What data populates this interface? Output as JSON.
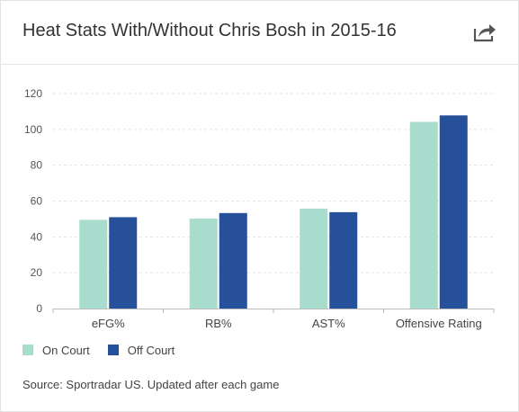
{
  "title": "Heat Stats With/Without Chris Bosh in 2015-16",
  "share_icon": "share-arrow-icon",
  "source": "Source: Sportradar US. Updated after each game",
  "colors": {
    "on_court": "#a8dccc",
    "off_court": "#27509b",
    "grid": "#e3e3e3"
  },
  "chart_data": {
    "type": "bar",
    "title": "Heat Stats With/Without Chris Bosh in 2015-16",
    "xlabel": "",
    "ylabel": "",
    "categories": [
      "eFG%",
      "RB%",
      "AST%",
      "Offensive Rating"
    ],
    "series": [
      {
        "name": "On Court",
        "values": [
          49.5,
          50.2,
          55.8,
          104.2
        ]
      },
      {
        "name": "Off Court",
        "values": [
          51.0,
          53.3,
          53.8,
          107.8
        ]
      }
    ],
    "ylim": [
      0,
      120
    ],
    "yticks": [
      0,
      20,
      40,
      60,
      80,
      100,
      120
    ],
    "grid": true,
    "legend": "bottom-left"
  }
}
